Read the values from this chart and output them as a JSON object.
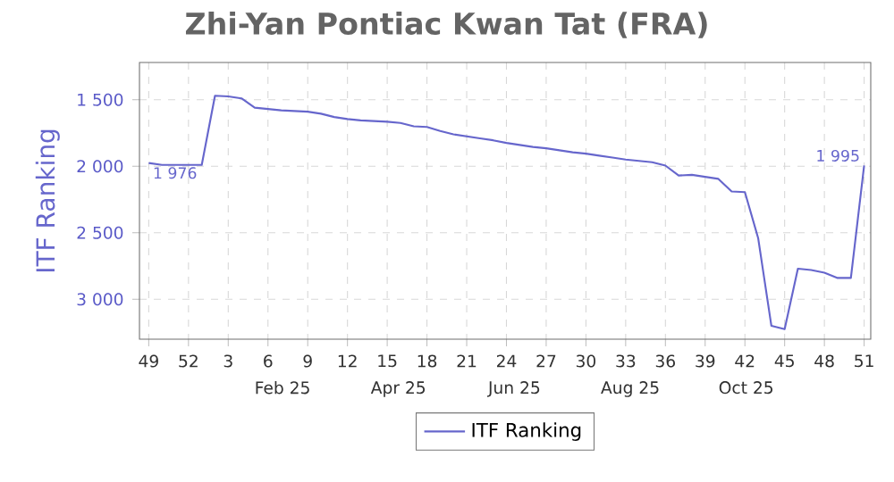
{
  "chart_data": {
    "type": "line",
    "title": "Zhi-Yan Pontiac Kwan Tat (FRA)",
    "ylabel": "ITF Ranking",
    "categories": [
      "49",
      null,
      null,
      "52",
      null,
      null,
      "3",
      null,
      null,
      "6",
      null,
      null,
      "9",
      null,
      null,
      "12",
      null,
      null,
      "15",
      null,
      null,
      "18",
      null,
      null,
      "21",
      null,
      null,
      "24",
      null,
      null,
      "27",
      null,
      null,
      "30",
      null,
      null,
      "33",
      null,
      null,
      "36",
      null,
      null,
      "39",
      null,
      null,
      "42",
      null,
      null,
      "45",
      null,
      null,
      "48",
      null,
      null,
      "51"
    ],
    "series": [
      {
        "name": "ITF Ranking",
        "color": "#6666cc",
        "values": [
          1976,
          1990,
          1990,
          1990,
          1990,
          1470,
          1475,
          1490,
          1560,
          1570,
          1580,
          1585,
          1590,
          1605,
          1630,
          1645,
          1655,
          1660,
          1665,
          1675,
          1700,
          1705,
          1735,
          1760,
          1775,
          1790,
          1805,
          1825,
          1840,
          1855,
          1865,
          1880,
          1895,
          1905,
          1920,
          1935,
          1950,
          1960,
          1970,
          1995,
          2070,
          2065,
          2080,
          2095,
          2190,
          2195,
          2540,
          3200,
          3225,
          2770,
          2780,
          2800,
          2840,
          2840,
          1995
        ]
      }
    ],
    "ylim": [
      3300,
      1220
    ],
    "yticks": [
      {
        "value": 1500,
        "label": "1 500"
      },
      {
        "value": 2000,
        "label": "2 000"
      },
      {
        "value": 2500,
        "label": "2 500"
      },
      {
        "value": 3000,
        "label": "3 000"
      }
    ],
    "annotations": [
      {
        "text": "1 976",
        "x": "49",
        "y": 1976
      },
      {
        "text": "1 995",
        "x": "51",
        "y": 1995
      },
      "Feb 25",
      "Apr 25",
      "Jun 25",
      "Aug 25",
      "Oct 25"
    ],
    "grid": true,
    "legend": "bottom",
    "marker": "none",
    "line_style": "solid"
  }
}
